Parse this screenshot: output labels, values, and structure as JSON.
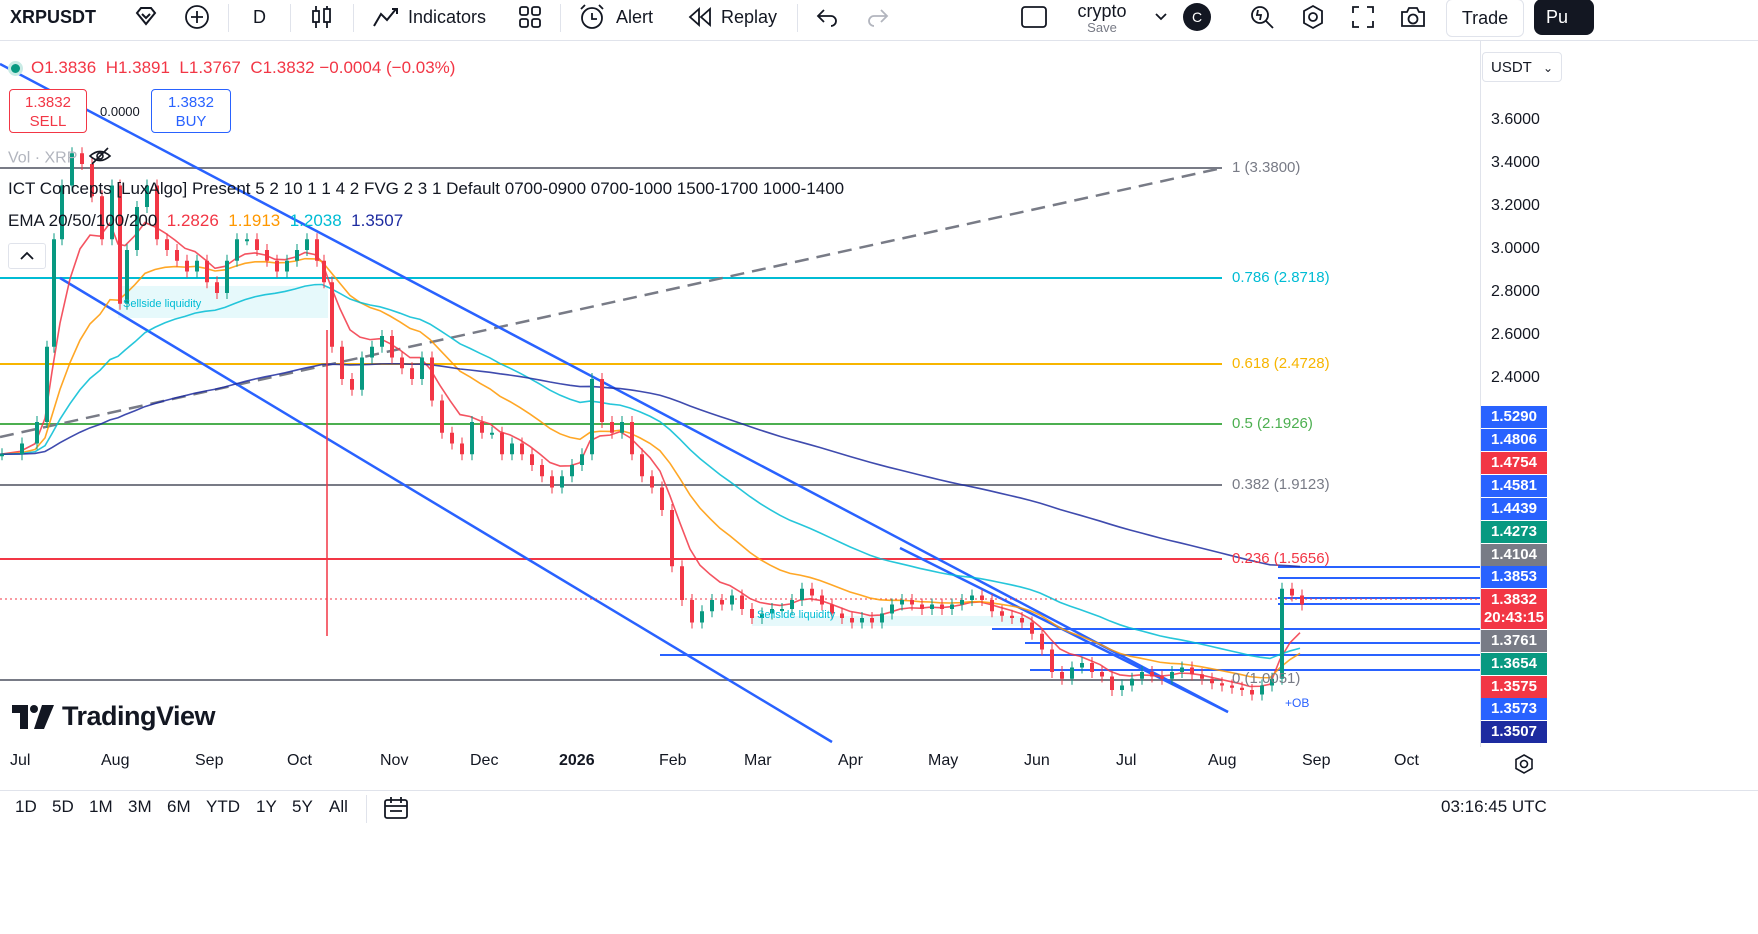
{
  "toolbar": {
    "symbol": "XRPUSDT",
    "interval": "D",
    "indicators": "Indicators",
    "alert": "Alert",
    "replay": "Replay",
    "layout_name": "crypto",
    "layout_save": "Save",
    "layout_badge": "C",
    "trade": "Trade",
    "publish": "Pu"
  },
  "legend": {
    "ohlc_o": "O1.3836",
    "ohlc_h": "H1.3891",
    "ohlc_l": "L1.3767",
    "ohlc_c": "C1.3832",
    "ohlc_chg": "−0.0004 (−0.03%)",
    "sell_price": "1.3832",
    "sell_label": "SELL",
    "spread": "0.0000",
    "buy_price": "1.3832",
    "buy_label": "BUY",
    "vol": "Vol · XRP",
    "ict": "ICT Concepts [LuxAlgo] Present 5 2 10 1 1 4 2 FVG 2 3 1 Default 0700-0900 0700-1000 1500-1700 1000-1400",
    "ema_name": "EMA 20/50/100/200",
    "ema20": "1.2826",
    "ema50": "1.1913",
    "ema100": "1.2038",
    "ema200": "1.3507"
  },
  "currency": "USDT",
  "y_axis": [
    "3.6000",
    "3.4000",
    "3.2000",
    "3.0000",
    "2.8000",
    "2.6000",
    "2.4000"
  ],
  "price_tags": [
    {
      "v": "1.5290",
      "color": "#2962ff"
    },
    {
      "v": "1.4806",
      "color": "#2962ff"
    },
    {
      "v": "1.4754",
      "color": "#f23645"
    },
    {
      "v": "1.4581",
      "color": "#2962ff"
    },
    {
      "v": "1.4439",
      "color": "#2962ff"
    },
    {
      "v": "1.4273",
      "color": "#089981"
    },
    {
      "v": "1.4104",
      "color": "#787b86"
    },
    {
      "v": "1.3853",
      "color": "#2962ff"
    },
    {
      "v": "1.3832",
      "color": "#f23645"
    },
    {
      "v": "20:43:15",
      "color": "#f23645"
    },
    {
      "v": "1.3761",
      "color": "#787b86"
    },
    {
      "v": "1.3654",
      "color": "#089981"
    },
    {
      "v": "1.3575",
      "color": "#f23645"
    },
    {
      "v": "1.3573",
      "color": "#2962ff"
    },
    {
      "v": "1.3507",
      "color": "#1d2ba0"
    }
  ],
  "fib": [
    {
      "label": "1 (3.3800)",
      "color": "#787b86"
    },
    {
      "label": "0.786 (2.8718)",
      "color": "#00bcd4"
    },
    {
      "label": "0.618 (2.4728)",
      "color": "#f7b500"
    },
    {
      "label": "0.5 (2.1926)",
      "color": "#4caf50"
    },
    {
      "label": "0.382 (1.9123)",
      "color": "#787b86"
    },
    {
      "label": "0.236 (1.5656)",
      "color": "#f23645"
    },
    {
      "label": "0 (1.0051)",
      "color": "#787b86"
    }
  ],
  "annotations": {
    "sellside1": "Sellside liquidity",
    "sellside2": "Sellside liquidity",
    "ob": "+OB",
    "brand": "TradingView"
  },
  "x_axis": [
    "Jul",
    "Aug",
    "Sep",
    "Oct",
    "Nov",
    "Dec",
    "2026",
    "Feb",
    "Mar",
    "Apr",
    "May",
    "Jun",
    "Jul",
    "Aug",
    "Sep",
    "Oct"
  ],
  "ranges": [
    "1D",
    "5D",
    "1M",
    "3M",
    "6M",
    "YTD",
    "1Y",
    "5Y",
    "All"
  ],
  "clock": "03:16:45 UTC",
  "colors": {
    "up": "#089981",
    "down": "#f23645",
    "channel": "#2962ff",
    "ema20": "#f23645",
    "ema50": "#ff9800",
    "ema100": "#00bcd4",
    "ema200": "#1d2ba0"
  }
}
